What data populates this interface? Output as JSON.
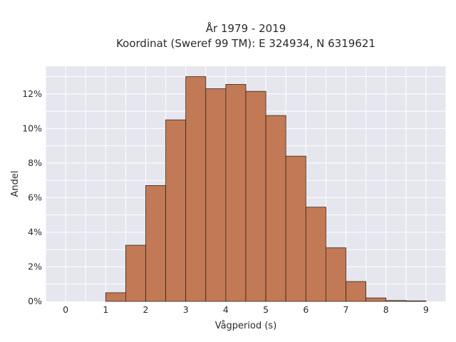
{
  "chart_data": {
    "type": "bar",
    "title_line1": "År 1979 - 2019",
    "title_line2": "Koordinat (Sweref 99 TM): E 324934, N 6319621",
    "xlabel": "Vågperiod (s)",
    "ylabel": "Andel",
    "xlim": [
      -0.5,
      9.5
    ],
    "ylim": [
      0,
      13.6
    ],
    "x_ticks": [
      0,
      1,
      2,
      3,
      4,
      5,
      6,
      7,
      8,
      9
    ],
    "y_ticks": [
      0,
      2,
      4,
      6,
      8,
      10,
      12
    ],
    "y_tick_labels": [
      "0%",
      "2%",
      "4%",
      "6%",
      "8%",
      "10%",
      "12%"
    ],
    "bin_width": 0.5,
    "bin_starts": [
      1.0,
      1.5,
      2.0,
      2.5,
      3.0,
      3.5,
      4.0,
      4.5,
      5.0,
      5.5,
      6.0,
      6.5,
      7.0,
      7.5,
      8.0,
      8.5
    ],
    "values": [
      0.5,
      3.25,
      6.7,
      10.5,
      13.0,
      12.3,
      12.55,
      12.15,
      10.75,
      8.4,
      5.45,
      3.1,
      1.15,
      0.2,
      0.05,
      0.03
    ],
    "bar_color": "#c17a55",
    "bar_edge_color": "#3b2418",
    "plot_bg": "#e6e6ef",
    "grid_color": "#ffffff",
    "grid": true
  }
}
